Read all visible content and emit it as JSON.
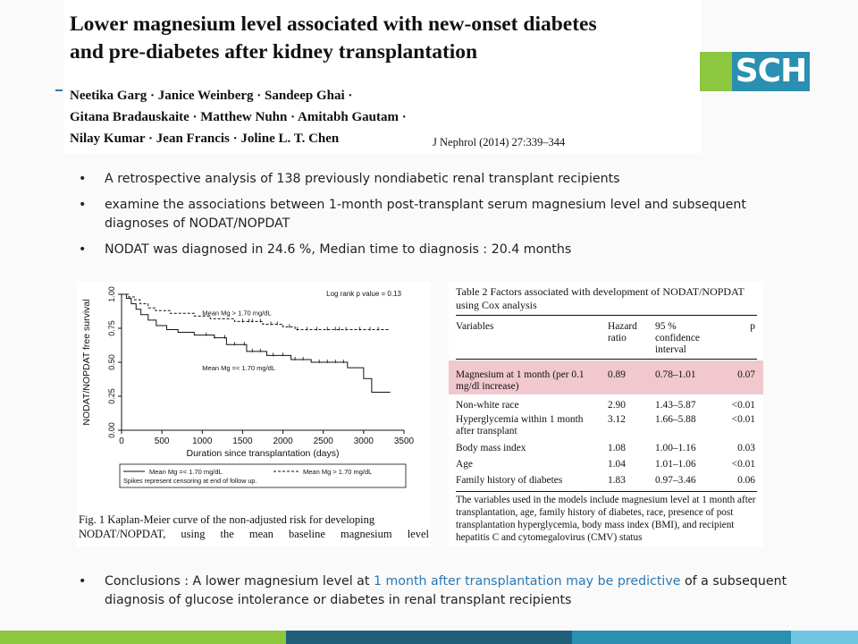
{
  "header": {
    "title_lines": [
      "Lower magnesium level associated with new-onset diabetes",
      "and pre-diabetes after kidney transplantation"
    ],
    "author_lines": [
      "Neetika Garg · Janice Weinberg · Sandeep Ghai ·",
      "Gitana Bradauskaite · Matthew Nuhn · Amitabh Gautam ·",
      "Nilay Kumar · Jean Francis · Joline L. T. Chen"
    ],
    "journal": "J Nephrol (2014) 27:339–344",
    "logo_text": "SCH",
    "logo_colors": {
      "green": "#8dc63f",
      "blue": "#2a8fb0"
    }
  },
  "bullets": [
    "A retrospective analysis of 138 previously nondiabetic renal transplant recipients",
    "examine the associations between 1-month post-transplant serum magnesium level and subsequent diagnoses of NODAT/NOPDAT",
    "NODAT was diagnosed in 24.6 %, Median time to diagnosis : 20.4 months"
  ],
  "bullet_glyph": "•",
  "conclusion": {
    "prefix": "Conclusions :  A lower magnesium level at ",
    "highlight": "1 month after transplantation may be predictive",
    "suffix": " of a subsequent diagnosis of glucose intolerance or diabetes in renal transplant recipients",
    "highlight_color": "#2a79b5"
  },
  "figure": {
    "caption_line1": "Fig. 1  Kaplan-Meier curve of the non-adjusted risk for developing",
    "caption_line2_words": [
      "NODAT/NOPDAT,",
      "using",
      "the",
      "mean",
      "baseline",
      "magnesium",
      "level"
    ]
  },
  "chart_data": {
    "type": "line",
    "ylabel": "NODAT/NOPDAT free survival",
    "xlabel": "Duration since transplantation (days)",
    "xlim": [
      0,
      3500
    ],
    "ylim": [
      0,
      1
    ],
    "x_ticks": [
      "0",
      "500",
      "1000",
      "1500",
      "2000",
      "2500",
      "3000",
      "3500"
    ],
    "y_ticks": [
      "0.00",
      "0.25",
      "0.50",
      "0.75",
      "1.00"
    ],
    "annotation": "Log rank p value = 0.13",
    "legend": {
      "entries": [
        "Mean Mg =< 1.70 mg/dL",
        "Mean Mg > 1.70 mg/dL"
      ],
      "note": "Spikes represent censoring at end of follow up.",
      "placement": "bottom"
    },
    "series": [
      {
        "name": "Mean Mg > 1.70 mg/dL",
        "label": "Mean Mg > 1.70 mg/dL",
        "style": "dashed",
        "points": [
          [
            0,
            1.0
          ],
          [
            90,
            0.98
          ],
          [
            160,
            0.96
          ],
          [
            230,
            0.93
          ],
          [
            330,
            0.9
          ],
          [
            420,
            0.88
          ],
          [
            600,
            0.86
          ],
          [
            900,
            0.84
          ],
          [
            1100,
            0.82
          ],
          [
            1400,
            0.8
          ],
          [
            1750,
            0.78
          ],
          [
            2000,
            0.76
          ],
          [
            2150,
            0.74
          ],
          [
            3330,
            0.74
          ]
        ],
        "censor_x": [
          1500,
          1580,
          1620,
          1720,
          1850,
          1930,
          2080,
          2180,
          2300,
          2420,
          2550,
          2650,
          2700,
          2780,
          2950,
          3080,
          3180
        ]
      },
      {
        "name": "Mean Mg =< 1.70 mg/dL",
        "label": "Mean Mg =< 1.70 mg/dL",
        "style": "solid",
        "points": [
          [
            0,
            1.0
          ],
          [
            60,
            0.97
          ],
          [
            120,
            0.93
          ],
          [
            180,
            0.89
          ],
          [
            240,
            0.85
          ],
          [
            330,
            0.81
          ],
          [
            430,
            0.77
          ],
          [
            560,
            0.74
          ],
          [
            700,
            0.72
          ],
          [
            900,
            0.7
          ],
          [
            1150,
            0.68
          ],
          [
            1300,
            0.63
          ],
          [
            1550,
            0.58
          ],
          [
            1800,
            0.55
          ],
          [
            2100,
            0.52
          ],
          [
            2350,
            0.5
          ],
          [
            2800,
            0.46
          ],
          [
            3000,
            0.38
          ],
          [
            3100,
            0.28
          ],
          [
            3330,
            0.28
          ]
        ],
        "censor_x": [
          1050,
          1150,
          1280,
          1400,
          1520,
          1620,
          1720,
          1880,
          2000,
          2150,
          2250,
          2450,
          2550,
          2650,
          2750
        ]
      }
    ]
  },
  "table": {
    "title": "Table 2  Factors associated with development of NODAT/NOPDAT using Cox analysis",
    "headers": [
      "Variables",
      "Hazard ratio",
      "95 % confidence interval",
      "p"
    ],
    "highlight_color": "#f0c8ce",
    "rows": [
      [
        "Magnesium at 1 month (per 0.1 mg/dl increase)",
        "0.89",
        "0.78–1.01",
        "0.07"
      ],
      [
        "Non-white race",
        "2.90",
        "1.43–5.87",
        "<0.01"
      ],
      [
        "Hyperglycemia within 1 month after transplant",
        "3.12",
        "1.66–5.88",
        "<0.01"
      ],
      [
        "Body mass index",
        "1.08",
        "1.00–1.16",
        "0.03"
      ],
      [
        "Age",
        "1.04",
        "1.01–1.06",
        "<0.01"
      ],
      [
        "Family history of diabetes",
        "1.83",
        "0.97–3.46",
        "0.06"
      ]
    ],
    "footnote": "The variables used in the models include magnesium level at 1 month after transplantation, age, family history of diabetes, race, presence of post transplantation hyperglycemia, body mass index (BMI), and recipient hepatitis C and cytomegalovirus (CMV) status"
  },
  "bottom_bar_colors": [
    "#8dc63f",
    "#1f5f7a",
    "#2a8fb0",
    "#6ec6e3"
  ]
}
